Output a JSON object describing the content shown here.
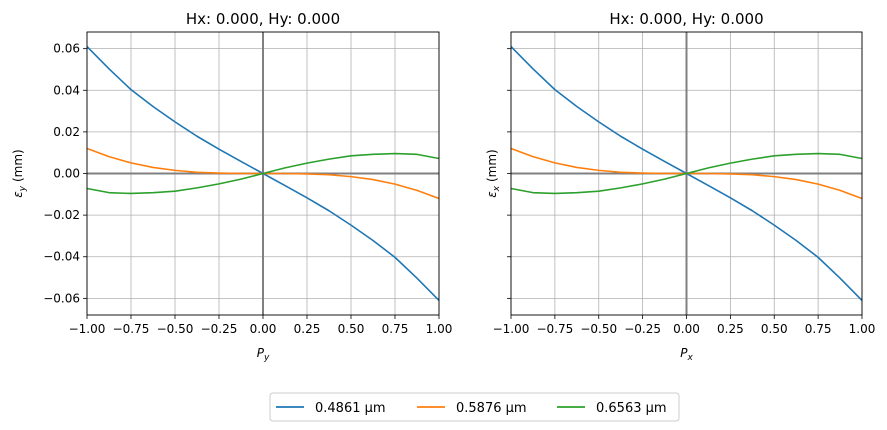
{
  "chart_data": [
    {
      "type": "line",
      "title": "Hx: 0.000, Hy: 0.000",
      "xlabel": "P",
      "xlabel_sub": "y",
      "ylabel": "ε",
      "ylabel_sub": "y",
      "ylabel_unit": " (mm)",
      "xlim": [
        -1.0,
        1.0
      ],
      "ylim": [
        -0.068,
        0.068
      ],
      "xticks": [
        -1.0,
        -0.75,
        -0.5,
        -0.25,
        0.0,
        0.25,
        0.5,
        0.75,
        1.0
      ],
      "xtick_labels": [
        "−1.00",
        "−0.75",
        "−0.50",
        "−0.25",
        "0.00",
        "0.25",
        "0.50",
        "0.75",
        "1.00"
      ],
      "yticks": [
        -0.06,
        -0.04,
        -0.02,
        0.0,
        0.02,
        0.04,
        0.06
      ],
      "ytick_labels": [
        "−0.06",
        "−0.04",
        "−0.02",
        "0.00",
        "0.02",
        "0.04",
        "0.06"
      ],
      "grid": true,
      "show_ytick_labels": true,
      "x": [
        -1.0,
        -0.875,
        -0.75,
        -0.625,
        -0.5,
        -0.375,
        -0.25,
        -0.125,
        0.0,
        0.125,
        0.25,
        0.375,
        0.5,
        0.625,
        0.75,
        0.875,
        1.0
      ],
      "series": [
        {
          "name": "0.4861 µm",
          "color": "#1f77b4",
          "values": [
            0.061,
            0.0503,
            0.0403,
            0.0322,
            0.0248,
            0.0179,
            0.0117,
            0.0058,
            0.0,
            -0.0058,
            -0.0117,
            -0.0179,
            -0.0248,
            -0.0322,
            -0.0403,
            -0.0503,
            -0.061
          ]
        },
        {
          "name": "0.5876 µm",
          "color": "#ff7f0e",
          "values": [
            0.012,
            0.0081,
            0.0051,
            0.0029,
            0.0015,
            0.0006,
            0.0002,
            0.0,
            0.0,
            0.0,
            -0.0002,
            -0.0006,
            -0.0015,
            -0.0029,
            -0.0051,
            -0.0081,
            -0.012
          ]
        },
        {
          "name": "0.6563 µm",
          "color": "#2ca02c",
          "values": [
            -0.0072,
            -0.0092,
            -0.0096,
            -0.0092,
            -0.0085,
            -0.0069,
            -0.005,
            -0.0027,
            0.0,
            0.0027,
            0.005,
            0.0069,
            0.0085,
            0.0092,
            0.0096,
            0.0092,
            0.0072
          ]
        }
      ]
    },
    {
      "type": "line",
      "title": "Hx: 0.000, Hy: 0.000",
      "xlabel": "P",
      "xlabel_sub": "x",
      "ylabel": "ε",
      "ylabel_sub": "x",
      "ylabel_unit": " (mm)",
      "xlim": [
        -1.0,
        1.0
      ],
      "ylim": [
        -0.068,
        0.068
      ],
      "xticks": [
        -1.0,
        -0.75,
        -0.5,
        -0.25,
        0.0,
        0.25,
        0.5,
        0.75,
        1.0
      ],
      "xtick_labels": [
        "−1.00",
        "−0.75",
        "−0.50",
        "−0.25",
        "0.00",
        "0.25",
        "0.50",
        "0.75",
        "1.00"
      ],
      "yticks": [
        -0.06,
        -0.04,
        -0.02,
        0.0,
        0.02,
        0.04,
        0.06
      ],
      "ytick_labels": [],
      "grid": true,
      "show_ytick_labels": false,
      "x": [
        -1.0,
        -0.875,
        -0.75,
        -0.625,
        -0.5,
        -0.375,
        -0.25,
        -0.125,
        0.0,
        0.125,
        0.25,
        0.375,
        0.5,
        0.625,
        0.75,
        0.875,
        1.0
      ],
      "series": [
        {
          "name": "0.4861 µm",
          "color": "#1f77b4",
          "values": [
            0.061,
            0.0503,
            0.0403,
            0.0322,
            0.0248,
            0.0179,
            0.0117,
            0.0058,
            0.0,
            -0.0058,
            -0.0117,
            -0.0179,
            -0.0248,
            -0.0322,
            -0.0403,
            -0.0503,
            -0.061
          ]
        },
        {
          "name": "0.5876 µm",
          "color": "#ff7f0e",
          "values": [
            0.012,
            0.0081,
            0.0051,
            0.0029,
            0.0015,
            0.0006,
            0.0002,
            0.0,
            0.0,
            0.0,
            -0.0002,
            -0.0006,
            -0.0015,
            -0.0029,
            -0.0051,
            -0.0081,
            -0.012
          ]
        },
        {
          "name": "0.6563 µm",
          "color": "#2ca02c",
          "values": [
            -0.0072,
            -0.0092,
            -0.0096,
            -0.0092,
            -0.0085,
            -0.0069,
            -0.005,
            -0.0027,
            0.0,
            0.0027,
            0.005,
            0.0069,
            0.0085,
            0.0092,
            0.0096,
            0.0092,
            0.0072
          ]
        }
      ]
    }
  ],
  "legend": {
    "placement": "bottom-center",
    "entries": [
      {
        "label": "0.4861 µm",
        "color": "#1f77b4"
      },
      {
        "label": "0.5876 µm",
        "color": "#ff7f0e"
      },
      {
        "label": "0.6563 µm",
        "color": "#2ca02c"
      }
    ]
  }
}
